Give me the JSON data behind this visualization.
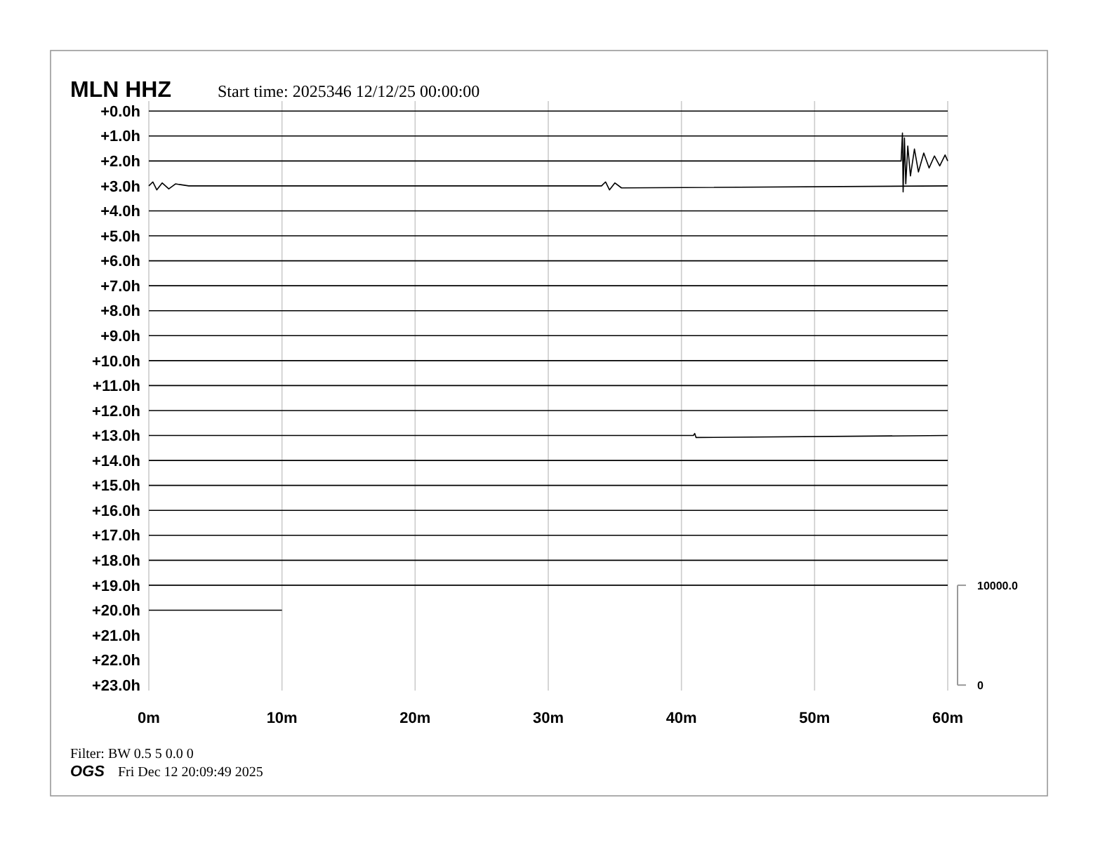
{
  "chart_data": {
    "type": "line",
    "title": "MLN HHZ",
    "subtitle": "Start time: 2025346 12/12/25 00:00:00",
    "annotations": [
      "Filter: BW 0.5 5 0.0 0",
      "OGS",
      "Fri Dec 12 20:09:49 2025"
    ],
    "xlim": [
      0,
      60
    ],
    "xticks": [
      {
        "value": 0,
        "label": "0m"
      },
      {
        "value": 10,
        "label": "10m"
      },
      {
        "value": 20,
        "label": "20m"
      },
      {
        "value": 30,
        "label": "30m"
      },
      {
        "value": 40,
        "label": "40m"
      },
      {
        "value": 50,
        "label": "50m"
      },
      {
        "value": 60,
        "label": "60m"
      }
    ],
    "ylim": [
      23.22,
      -0.4
    ],
    "yticks": [
      {
        "value": 0,
        "label": "+0.0h"
      },
      {
        "value": 1,
        "label": "+1.0h"
      },
      {
        "value": 2,
        "label": "+2.0h"
      },
      {
        "value": 3,
        "label": "+3.0h"
      },
      {
        "value": 4,
        "label": "+4.0h"
      },
      {
        "value": 5,
        "label": "+5.0h"
      },
      {
        "value": 6,
        "label": "+6.0h"
      },
      {
        "value": 7,
        "label": "+7.0h"
      },
      {
        "value": 8,
        "label": "+8.0h"
      },
      {
        "value": 9,
        "label": "+9.0h"
      },
      {
        "value": 10,
        "label": "+10.0h"
      },
      {
        "value": 11,
        "label": "+11.0h"
      },
      {
        "value": 12,
        "label": "+12.0h"
      },
      {
        "value": 13,
        "label": "+13.0h"
      },
      {
        "value": 14,
        "label": "+14.0h"
      },
      {
        "value": 15,
        "label": "+15.0h"
      },
      {
        "value": 16,
        "label": "+16.0h"
      },
      {
        "value": 17,
        "label": "+17.0h"
      },
      {
        "value": 18,
        "label": "+18.0h"
      },
      {
        "value": 19,
        "label": "+19.0h"
      },
      {
        "value": 20,
        "label": "+20.0h"
      },
      {
        "value": 21,
        "label": "+21.0h"
      },
      {
        "value": 22,
        "label": "+22.0h"
      },
      {
        "value": 23,
        "label": "+23.0h"
      }
    ],
    "y2lim": [
      -550,
      58500
    ],
    "y2ticks": [
      {
        "value": 0,
        "label": "0"
      },
      {
        "value": 10000,
        "label": "10000.0"
      }
    ],
    "grid": "x",
    "series": [
      {
        "color": "#000000",
        "x": [
          0,
          60
        ],
        "values": [
          0,
          0
        ]
      },
      {
        "color": "#000000",
        "x": [
          0,
          60
        ],
        "values": [
          1,
          1
        ]
      },
      {
        "color": "#000000",
        "x": [
          0,
          56.5,
          56.6,
          56.65,
          56.75,
          56.85,
          57,
          57.2,
          57.5,
          57.8,
          58.2,
          58.6,
          59,
          59.4,
          59.8,
          60
        ],
        "values": [
          2,
          2,
          0.88,
          3.24,
          1.08,
          2.92,
          1.4,
          2.6,
          1.52,
          2.44,
          1.68,
          2.28,
          1.8,
          2.2,
          1.76,
          2
        ]
      },
      {
        "color": "#000000",
        "x": [
          0,
          0.3,
          0.6,
          1,
          1.5,
          2,
          3,
          34,
          34.3,
          34.6,
          35,
          35.5,
          60
        ],
        "values": [
          3,
          2.84,
          3.16,
          2.88,
          3.12,
          2.92,
          3,
          3,
          2.84,
          3.16,
          2.88,
          3.08,
          3
        ]
      },
      {
        "color": "#000000",
        "x": [
          0,
          60
        ],
        "values": [
          4,
          4
        ]
      },
      {
        "color": "#000000",
        "x": [
          0,
          60
        ],
        "values": [
          5,
          5
        ]
      },
      {
        "color": "#000000",
        "x": [
          0,
          60
        ],
        "values": [
          6,
          6
        ]
      },
      {
        "color": "#000000",
        "x": [
          0,
          60
        ],
        "values": [
          7,
          7
        ]
      },
      {
        "color": "#000000",
        "x": [
          0,
          60
        ],
        "values": [
          8,
          8
        ]
      },
      {
        "color": "#000000",
        "x": [
          0,
          60
        ],
        "values": [
          9,
          9
        ]
      },
      {
        "color": "#000000",
        "x": [
          0,
          60
        ],
        "values": [
          10,
          10
        ]
      },
      {
        "color": "#000000",
        "x": [
          0,
          60
        ],
        "values": [
          11,
          11
        ]
      },
      {
        "color": "#000000",
        "x": [
          0,
          60
        ],
        "values": [
          12,
          12
        ]
      },
      {
        "color": "#000000",
        "x": [
          0,
          40.9,
          41,
          41.1,
          60
        ],
        "values": [
          13,
          13,
          12.92,
          13.08,
          13
        ]
      },
      {
        "color": "#000000",
        "x": [
          0,
          60
        ],
        "values": [
          14,
          14
        ]
      },
      {
        "color": "#000000",
        "x": [
          0,
          60
        ],
        "values": [
          15,
          15
        ]
      },
      {
        "color": "#000000",
        "x": [
          0,
          60
        ],
        "values": [
          16,
          16
        ]
      },
      {
        "color": "#000000",
        "x": [
          0,
          60
        ],
        "values": [
          17,
          17
        ]
      },
      {
        "color": "#000000",
        "x": [
          0,
          60
        ],
        "values": [
          18,
          18
        ]
      },
      {
        "color": "#000000",
        "x": [
          0,
          60
        ],
        "values": [
          19,
          19
        ]
      },
      {
        "color": "#000000",
        "x": [
          0,
          10
        ],
        "values": [
          20,
          20
        ]
      }
    ]
  }
}
